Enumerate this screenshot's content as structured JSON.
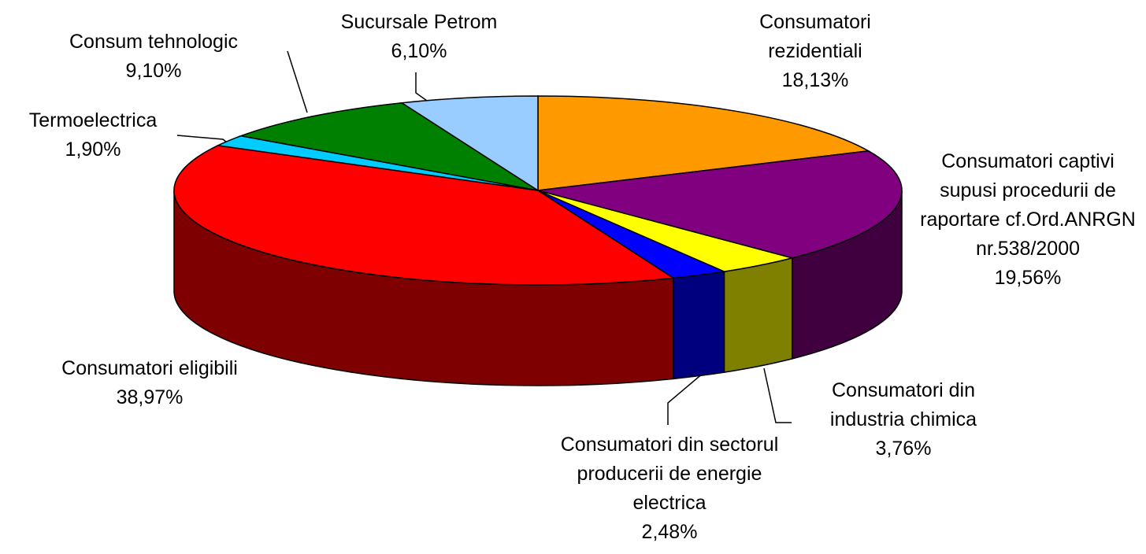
{
  "chart_data": {
    "type": "pie",
    "categories": [
      "Consumatori rezidentiali",
      "Consumatori captivi supusi procedurii de raportare cf.Ord.ANRGN nr.538/2000",
      "Consumatori din industria chimica",
      "Consumatori din sectorul producerii de energie electrica",
      "Consumatori eligibili",
      "Termoelectrica",
      "Consum tehnologic",
      "Sucursale Petrom"
    ],
    "values": [
      18.13,
      19.56,
      3.76,
      2.48,
      38.97,
      1.9,
      9.1,
      6.1
    ],
    "value_labels": [
      "18,13%",
      "19,56%",
      "3,76%",
      "2,48%",
      "38,97%",
      "1,90%",
      "9,10%",
      "6,10%"
    ],
    "colors": [
      "#FF9900",
      "#800080",
      "#FFFF00",
      "#0000FF",
      "#FF0000",
      "#00CCFF",
      "#008000",
      "#99CCFF"
    ]
  }
}
